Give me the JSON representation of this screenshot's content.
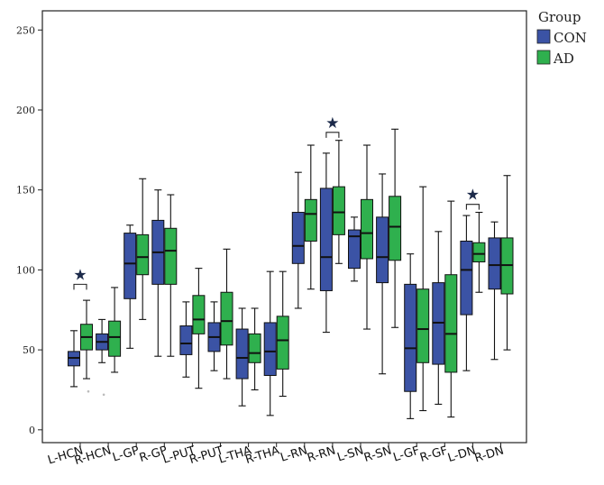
{
  "chart_data": {
    "type": "boxplot",
    "title": "",
    "xlabel": "",
    "ylabel": "",
    "ylim": [
      -8,
      262
    ],
    "yticks": [
      0,
      50,
      100,
      150,
      200,
      250
    ],
    "categories": [
      "L-HCN",
      "R-HCN",
      "L-GP",
      "R-GP",
      "L-PUT",
      "R-PUT",
      "L-THA",
      "R-THA",
      "L-RN",
      "R-RN",
      "L-SN",
      "R-SN",
      "L-GF",
      "R-GF",
      "L-DN",
      "R-DN"
    ],
    "legend": {
      "title": "Group",
      "position": "top-right"
    },
    "series": [
      {
        "name": "CON",
        "color": "#3b53a5",
        "boxes": [
          {
            "min": 27,
            "q1": 40,
            "median": 45,
            "q3": 49,
            "max": 62
          },
          {
            "min": 42,
            "q1": 50,
            "median": 55,
            "q3": 60,
            "max": 69
          },
          {
            "min": 51,
            "q1": 82,
            "median": 104,
            "q3": 123,
            "max": 128
          },
          {
            "min": 46,
            "q1": 91,
            "median": 111,
            "q3": 131,
            "max": 150
          },
          {
            "min": 33,
            "q1": 47,
            "median": 54,
            "q3": 65,
            "max": 80
          },
          {
            "min": 37,
            "q1": 49,
            "median": 58,
            "q3": 67,
            "max": 80
          },
          {
            "min": 15,
            "q1": 32,
            "median": 45,
            "q3": 63,
            "max": 76
          },
          {
            "min": 9,
            "q1": 34,
            "median": 49,
            "q3": 67,
            "max": 99
          },
          {
            "min": 76,
            "q1": 104,
            "median": 115,
            "q3": 136,
            "max": 161
          },
          {
            "min": 61,
            "q1": 87,
            "median": 108,
            "q3": 151,
            "max": 173
          },
          {
            "min": 93,
            "q1": 101,
            "median": 121,
            "q3": 125,
            "max": 133
          },
          {
            "min": 35,
            "q1": 92,
            "median": 108,
            "q3": 133,
            "max": 160
          },
          {
            "min": 7,
            "q1": 24,
            "median": 51,
            "q3": 91,
            "max": 110
          },
          {
            "min": 16,
            "q1": 41,
            "median": 67,
            "q3": 92,
            "max": 124
          },
          {
            "min": 37,
            "q1": 72,
            "median": 100,
            "q3": 118,
            "max": 134
          },
          {
            "min": 44,
            "q1": 88,
            "median": 103,
            "q3": 120,
            "max": 130
          }
        ]
      },
      {
        "name": "AD",
        "color": "#2fb04e",
        "boxes": [
          {
            "min": 32,
            "q1": 50,
            "median": 58,
            "q3": 66,
            "max": 81
          },
          {
            "min": 36,
            "q1": 46,
            "median": 58,
            "q3": 68,
            "max": 89
          },
          {
            "min": 69,
            "q1": 97,
            "median": 108,
            "q3": 122,
            "max": 157
          },
          {
            "min": 46,
            "q1": 91,
            "median": 112,
            "q3": 126,
            "max": 147
          },
          {
            "min": 26,
            "q1": 60,
            "median": 69,
            "q3": 84,
            "max": 101
          },
          {
            "min": 32,
            "q1": 53,
            "median": 68,
            "q3": 86,
            "max": 113
          },
          {
            "min": 25,
            "q1": 42,
            "median": 48,
            "q3": 60,
            "max": 76
          },
          {
            "min": 21,
            "q1": 38,
            "median": 56,
            "q3": 71,
            "max": 99
          },
          {
            "min": 88,
            "q1": 118,
            "median": 135,
            "q3": 144,
            "max": 178
          },
          {
            "min": 104,
            "q1": 122,
            "median": 136,
            "q3": 152,
            "max": 181
          },
          {
            "min": 63,
            "q1": 107,
            "median": 123,
            "q3": 144,
            "max": 178
          },
          {
            "min": 64,
            "q1": 106,
            "median": 127,
            "q3": 146,
            "max": 188
          },
          {
            "min": 12,
            "q1": 42,
            "median": 63,
            "q3": 88,
            "max": 152
          },
          {
            "min": 8,
            "q1": 36,
            "median": 60,
            "q3": 97,
            "max": 143
          },
          {
            "min": 86,
            "q1": 105,
            "median": 110,
            "q3": 117,
            "max": 136
          },
          {
            "min": 50,
            "q1": 85,
            "median": 103,
            "q3": 120,
            "max": 159
          }
        ]
      }
    ],
    "outliers": [
      {
        "category": "L-HCN",
        "series": "AD",
        "value": 24
      },
      {
        "category": "R-HCN",
        "series": "CON",
        "value": 22
      }
    ],
    "significance": [
      {
        "category": "L-HCN",
        "marker": "★",
        "bracket_value": 91
      },
      {
        "category": "R-RN",
        "marker": "★",
        "bracket_value": 186
      },
      {
        "category": "L-DN",
        "marker": "★",
        "bracket_value": 141
      }
    ]
  }
}
